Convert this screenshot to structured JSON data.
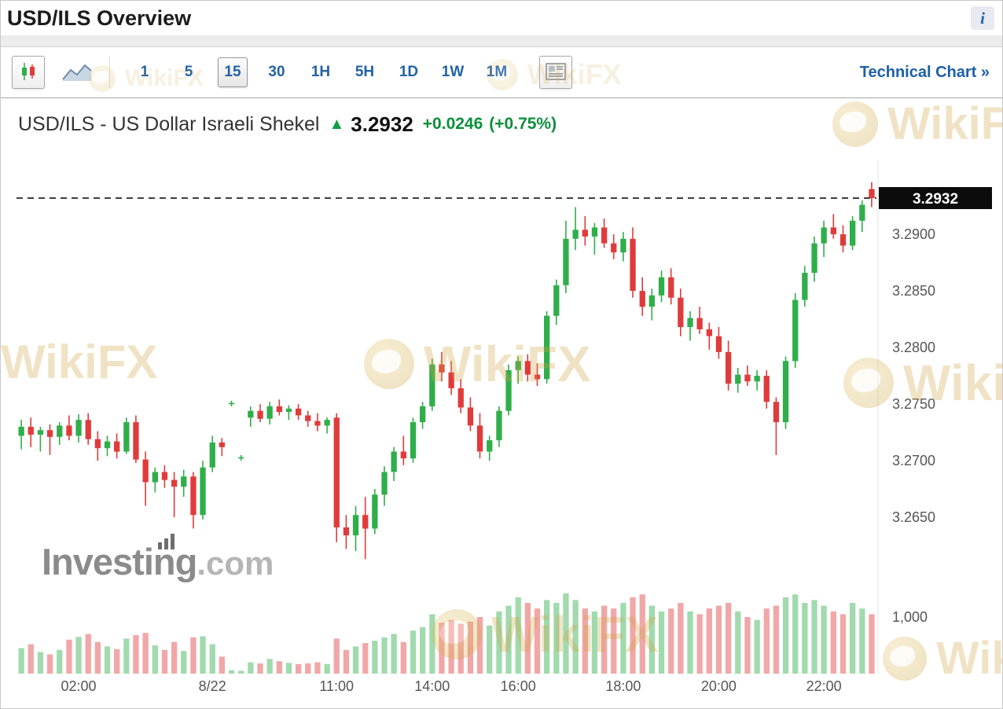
{
  "header": {
    "title": "USD/ILS Overview",
    "info_icon": "i"
  },
  "toolbar": {
    "chart_types": [
      {
        "name": "candlestick",
        "selected": true
      },
      {
        "name": "line"
      }
    ],
    "timeframes": [
      {
        "label": "1"
      },
      {
        "label": "5"
      },
      {
        "label": "15",
        "selected": true
      },
      {
        "label": "30"
      },
      {
        "label": "1H"
      },
      {
        "label": "5H"
      },
      {
        "label": "1D"
      },
      {
        "label": "1W"
      },
      {
        "label": "1M"
      }
    ],
    "technical_chart_label": "Technical Chart »"
  },
  "instrument": {
    "name": "USD/ILS - US Dollar Israeli Shekel",
    "arrow": "▲",
    "price": "3.2932",
    "change": "+0.0246",
    "change_pct": "(+0.75%)"
  },
  "watermarks": {
    "wikifx": "WikiFX",
    "investing": "Investing",
    "investing_suffix": ".com"
  },
  "theme": {
    "accent_blue": "#2262a5",
    "title_color": "#1c1c1c",
    "positive_green": "#0c8f3c",
    "watermark_gold": "#cfa543"
  },
  "chart_data": {
    "type": "candlestick",
    "title": "USD/ILS 15-minute candlestick chart with volume",
    "last_price": 3.2932,
    "last_price_label": "3.2932",
    "price_axis": {
      "ticks": [
        "3.2900",
        "3.2850",
        "3.2800",
        "3.2750",
        "3.2700",
        "3.2650"
      ],
      "min": 3.2591,
      "max": 3.2957
    },
    "volume_axis": {
      "ticks": [
        "1,000"
      ],
      "tick_values": [
        1000
      ],
      "max": 1500
    },
    "x_ticks": [
      {
        "label": "02:00",
        "index": 6
      },
      {
        "label": "8/22",
        "index": 20
      },
      {
        "label": "11:00",
        "index": 33
      },
      {
        "label": "14:00",
        "index": 43
      },
      {
        "label": "16:00",
        "index": 52
      },
      {
        "label": "18:00",
        "index": 63
      },
      {
        "label": "20:00",
        "index": 73
      },
      {
        "label": "22:00",
        "index": 84
      }
    ],
    "colors": {
      "up": "#2fae4a",
      "down": "#e03b3b",
      "volume_opacity": 0.45,
      "dashed_line": "#3f3f3f",
      "last_price_box": "#0c0c0c",
      "last_price_text": "#ffffff"
    },
    "candles": [
      [
        3.2722,
        3.2736,
        3.271,
        3.273,
        450
      ],
      [
        3.273,
        3.2738,
        3.2712,
        3.2723,
        520
      ],
      [
        3.2723,
        3.273,
        3.2708,
        3.2727,
        380
      ],
      [
        3.2727,
        3.2732,
        3.2705,
        3.2721,
        340
      ],
      [
        3.2721,
        3.2734,
        3.2714,
        3.2731,
        420
      ],
      [
        3.2731,
        3.274,
        3.2718,
        3.2722,
        600
      ],
      [
        3.2722,
        3.2741,
        3.2716,
        3.2736,
        650
      ],
      [
        3.2736,
        3.2742,
        3.2714,
        3.2719,
        700
      ],
      [
        3.2719,
        3.2726,
        3.27,
        3.2711,
        560
      ],
      [
        3.2711,
        3.2722,
        3.2704,
        3.2717,
        480
      ],
      [
        3.2717,
        3.2724,
        3.2702,
        3.2708,
        430
      ],
      [
        3.2708,
        3.2738,
        3.2706,
        3.2734,
        620
      ],
      [
        3.2734,
        3.274,
        3.2698,
        3.2701,
        680
      ],
      [
        3.2701,
        3.2708,
        3.266,
        3.2681,
        720
      ],
      [
        3.2681,
        3.2694,
        3.2672,
        3.269,
        500
      ],
      [
        3.269,
        3.2696,
        3.2676,
        3.2683,
        420
      ],
      [
        3.2683,
        3.269,
        3.265,
        3.2677,
        560
      ],
      [
        3.2677,
        3.2692,
        3.2668,
        3.2686,
        400
      ],
      [
        3.2686,
        3.269,
        3.264,
        3.2652,
        640
      ],
      [
        3.2652,
        3.27,
        3.2648,
        3.2694,
        660
      ],
      [
        3.2694,
        3.2722,
        3.269,
        3.2716,
        520
      ],
      [
        3.2716,
        3.272,
        3.2704,
        3.2712,
        300
      ],
      [
        3.2751,
        3.2753,
        3.2748,
        3.2751,
        60
      ],
      [
        3.2702,
        3.2705,
        3.27,
        3.2703,
        50
      ],
      [
        3.2738,
        3.2748,
        3.273,
        3.2744,
        200
      ],
      [
        3.2744,
        3.275,
        3.2734,
        3.2737,
        180
      ],
      [
        3.2737,
        3.2752,
        3.2732,
        3.2748,
        260
      ],
      [
        3.2748,
        3.2754,
        3.274,
        3.2743,
        220
      ],
      [
        3.2743,
        3.2749,
        3.2736,
        3.2746,
        190
      ],
      [
        3.2746,
        3.275,
        3.2736,
        3.274,
        170
      ],
      [
        3.274,
        3.2744,
        3.273,
        3.2735,
        180
      ],
      [
        3.2735,
        3.2742,
        3.2726,
        3.2731,
        200
      ],
      [
        3.2731,
        3.2738,
        3.2724,
        3.2736,
        170
      ],
      [
        3.2738,
        3.2742,
        3.2628,
        3.2641,
        620
      ],
      [
        3.2641,
        3.2652,
        3.2622,
        3.2634,
        420
      ],
      [
        3.2634,
        3.266,
        3.262,
        3.2652,
        480
      ],
      [
        3.2652,
        3.2668,
        3.2613,
        3.264,
        540
      ],
      [
        3.264,
        3.2675,
        3.2635,
        3.267,
        580
      ],
      [
        3.267,
        3.2695,
        3.266,
        3.269,
        640
      ],
      [
        3.269,
        3.2712,
        3.2682,
        3.2708,
        700
      ],
      [
        3.2708,
        3.2722,
        3.2696,
        3.2702,
        560
      ],
      [
        3.2702,
        3.2738,
        3.2698,
        3.2734,
        760
      ],
      [
        3.2734,
        3.2752,
        3.2728,
        3.2748,
        820
      ],
      [
        3.2748,
        3.279,
        3.2744,
        3.2785,
        1050
      ],
      [
        3.2785,
        3.2796,
        3.277,
        3.2778,
        900
      ],
      [
        3.2778,
        3.2788,
        3.2758,
        3.2764,
        950
      ],
      [
        3.2764,
        3.2772,
        3.2742,
        3.2747,
        880
      ],
      [
        3.2747,
        3.2756,
        3.2726,
        3.2731,
        920
      ],
      [
        3.2731,
        3.2742,
        3.2702,
        3.2708,
        1000
      ],
      [
        3.2708,
        3.2722,
        3.27,
        3.2718,
        850
      ],
      [
        3.2718,
        3.2748,
        3.2712,
        3.2744,
        1100
      ],
      [
        3.2744,
        3.2785,
        3.274,
        3.278,
        1200
      ],
      [
        3.278,
        3.2792,
        3.2768,
        3.2788,
        1350
      ],
      [
        3.2788,
        3.2794,
        3.277,
        3.2776,
        1250
      ],
      [
        3.2776,
        3.2786,
        3.2766,
        3.2772,
        1150
      ],
      [
        3.2772,
        3.2832,
        3.2768,
        3.2828,
        1300
      ],
      [
        3.2828,
        3.286,
        3.282,
        3.2855,
        1250
      ],
      [
        3.2855,
        3.2912,
        3.2848,
        3.2896,
        1420
      ],
      [
        3.2896,
        3.2924,
        3.2886,
        3.2904,
        1300
      ],
      [
        3.2904,
        3.2916,
        3.289,
        3.2898,
        1150
      ],
      [
        3.2898,
        3.291,
        3.2882,
        3.2906,
        1100
      ],
      [
        3.2906,
        3.2914,
        3.2888,
        3.2892,
        1200
      ],
      [
        3.2892,
        3.29,
        3.2878,
        3.2884,
        1150
      ],
      [
        3.2884,
        3.2902,
        3.2876,
        3.2896,
        1250
      ],
      [
        3.2896,
        3.2906,
        3.2844,
        3.285,
        1350
      ],
      [
        3.285,
        3.2862,
        3.2828,
        3.2836,
        1400
      ],
      [
        3.2836,
        3.2852,
        3.2824,
        3.2846,
        1200
      ],
      [
        3.2846,
        3.2868,
        3.284,
        3.2862,
        1100
      ],
      [
        3.2862,
        3.287,
        3.2838,
        3.2844,
        1150
      ],
      [
        3.2844,
        3.2852,
        3.281,
        3.2818,
        1250
      ],
      [
        3.2818,
        3.2832,
        3.2806,
        3.2826,
        1100
      ],
      [
        3.2826,
        3.2836,
        3.2812,
        3.2816,
        1050
      ],
      [
        3.2816,
        3.2822,
        3.2798,
        3.281,
        1150
      ],
      [
        3.281,
        3.2818,
        3.279,
        3.2796,
        1200
      ],
      [
        3.2796,
        3.2806,
        3.2762,
        3.2768,
        1250
      ],
      [
        3.2768,
        3.2782,
        3.276,
        3.2776,
        1100
      ],
      [
        3.2776,
        3.2784,
        3.2766,
        3.277,
        1000
      ],
      [
        3.277,
        3.278,
        3.2762,
        3.2775,
        950
      ],
      [
        3.2775,
        3.278,
        3.2746,
        3.2752,
        1150
      ],
      [
        3.2752,
        3.2756,
        3.2705,
        3.2734,
        1200
      ],
      [
        3.2734,
        3.2792,
        3.2728,
        3.2788,
        1350
      ],
      [
        3.2788,
        3.2848,
        3.2782,
        3.2842,
        1400
      ],
      [
        3.2842,
        3.2872,
        3.2836,
        3.2866,
        1250
      ],
      [
        3.2866,
        3.2898,
        3.2858,
        3.2892,
        1300
      ],
      [
        3.2892,
        3.2912,
        3.288,
        3.2906,
        1200
      ],
      [
        3.2906,
        3.2918,
        3.2896,
        3.29,
        1100
      ],
      [
        3.29,
        3.2908,
        3.2884,
        3.289,
        1050
      ],
      [
        3.289,
        3.2916,
        3.2886,
        3.2912,
        1250
      ],
      [
        3.2912,
        3.293,
        3.2902,
        3.2926,
        1150
      ],
      [
        3.294,
        3.2946,
        3.2924,
        3.2932,
        1050
      ]
    ]
  }
}
